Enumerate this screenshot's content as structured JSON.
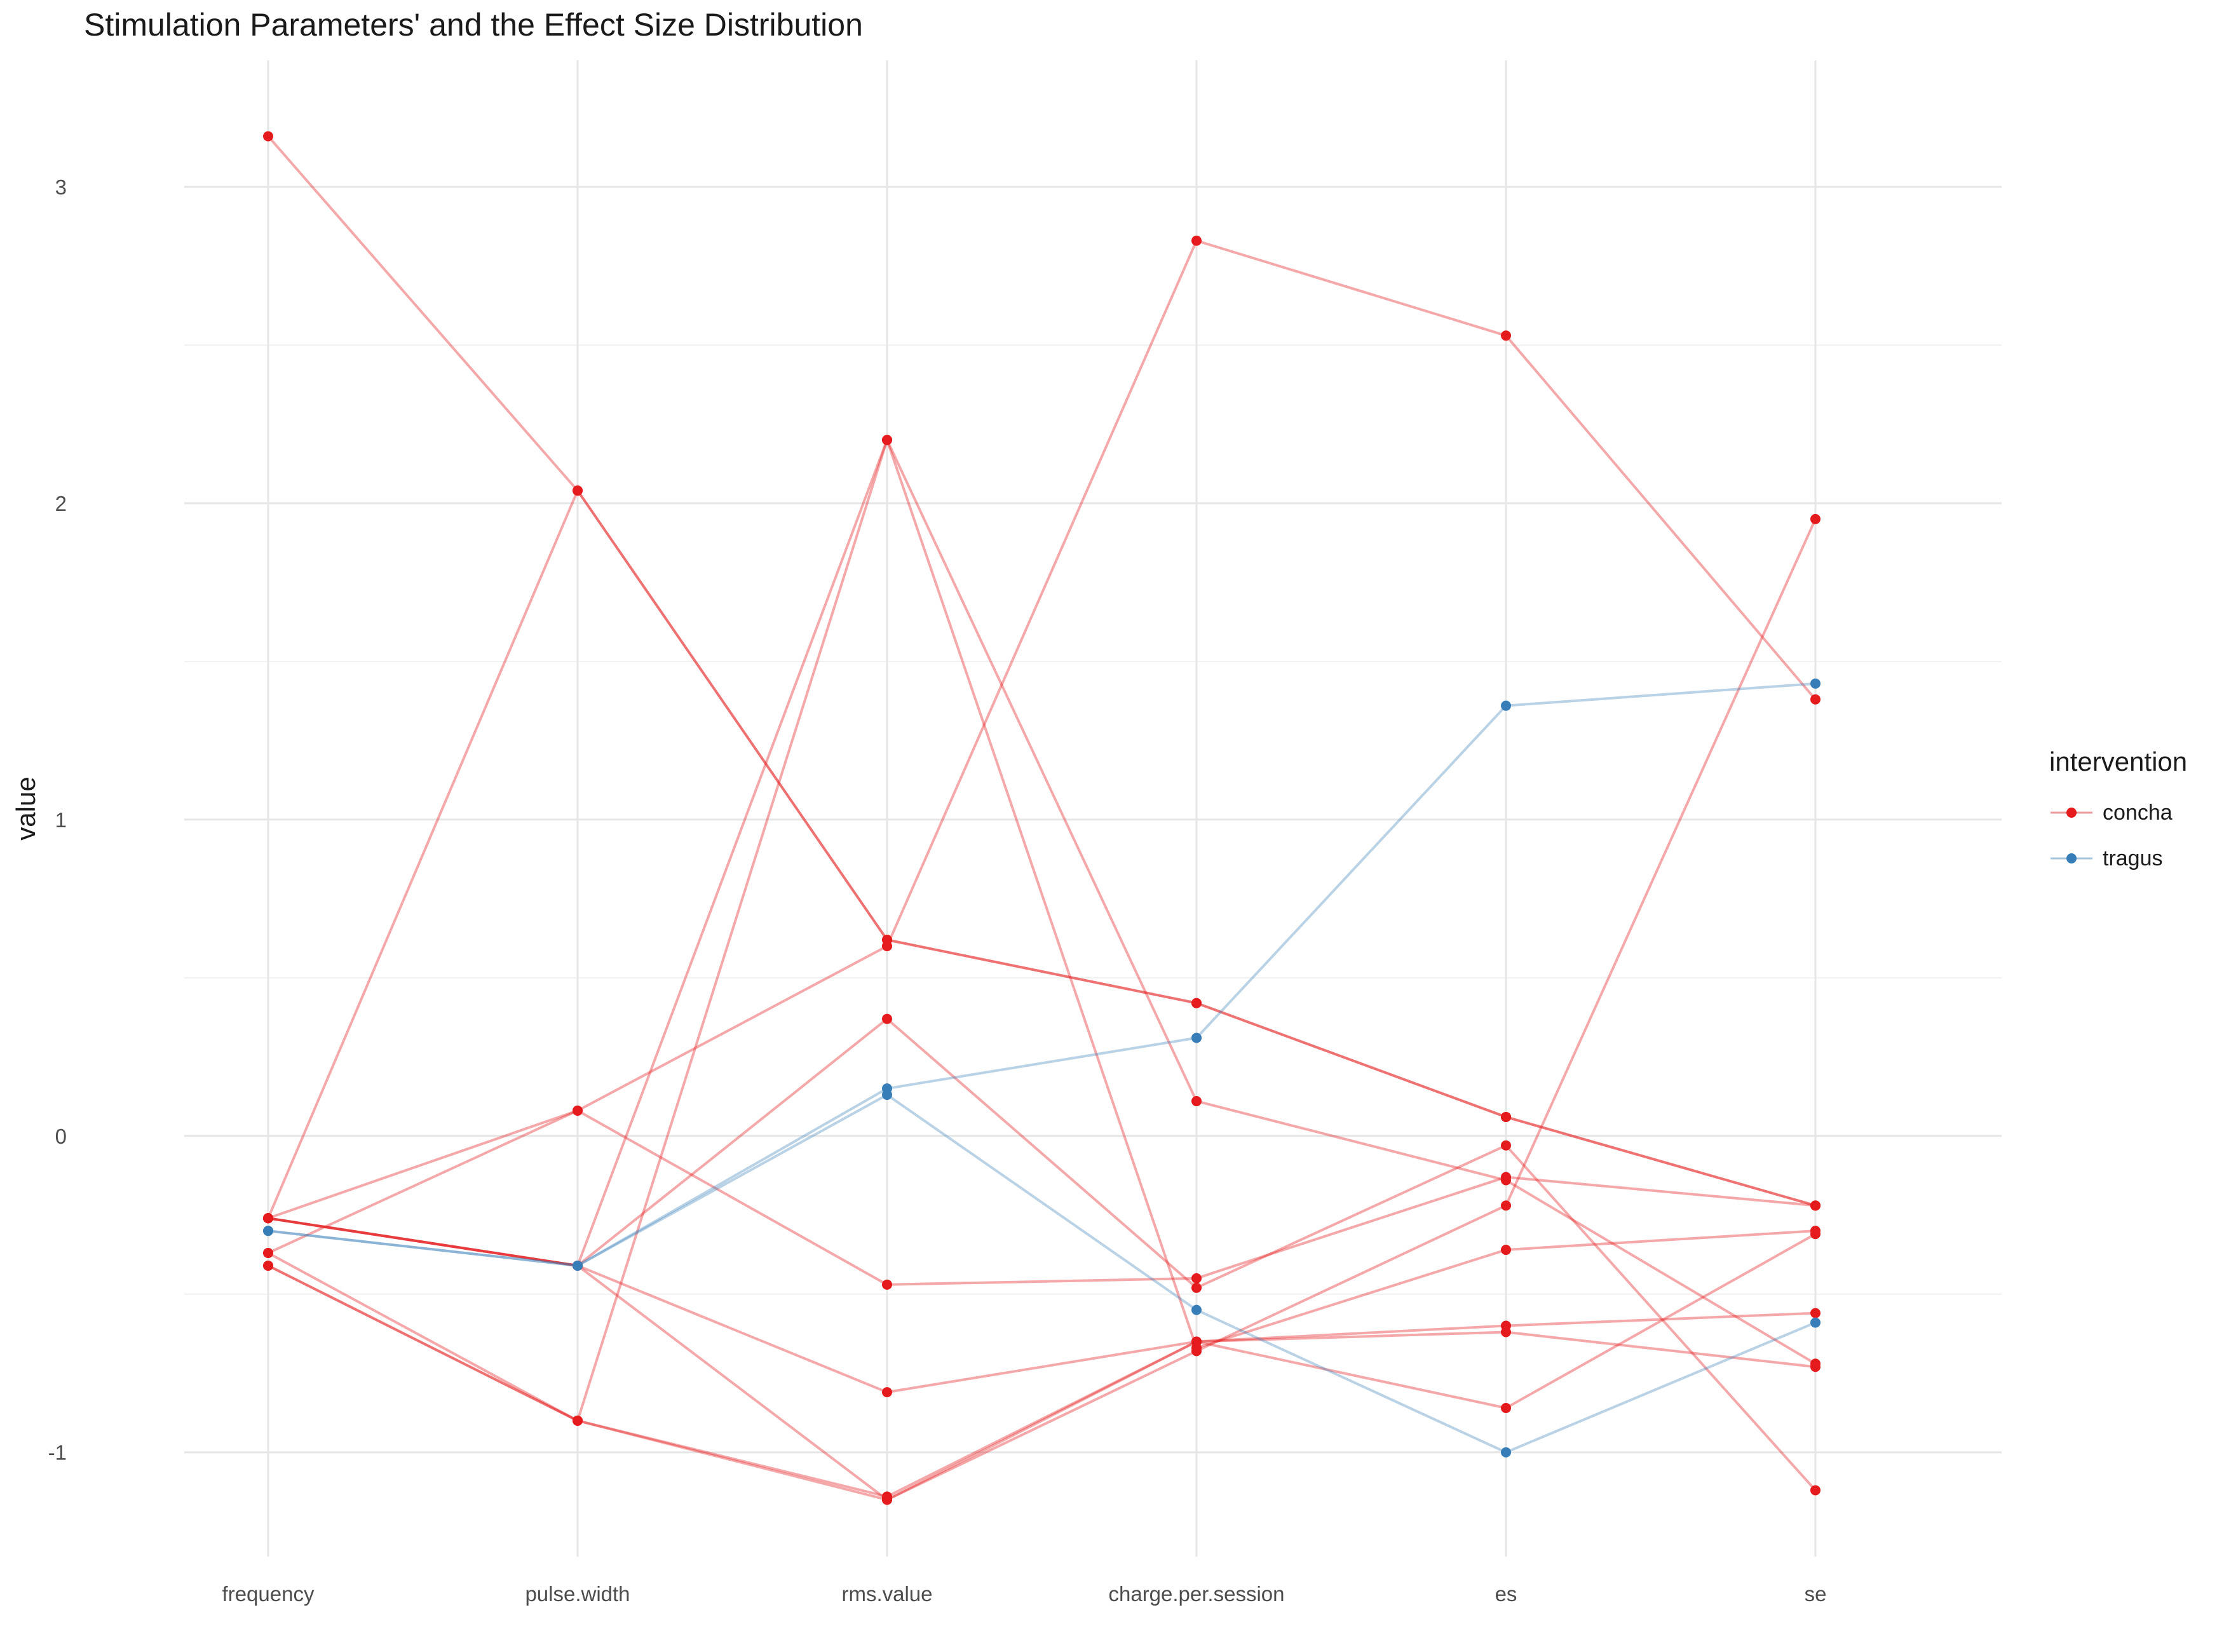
{
  "chart_data": {
    "type": "line",
    "title": "Stimulation Parameters' and the Effect Size Distribution",
    "xlabel": "",
    "ylabel": "value",
    "categories": [
      "frequency",
      "pulse.width",
      "rms.value",
      "charge.per.session",
      "es",
      "se"
    ],
    "ylim": [
      -1.33,
      3.4
    ],
    "yticks": [
      -1,
      0,
      1,
      2,
      3
    ],
    "grid": true,
    "legend": {
      "title": "intervention",
      "position": "right",
      "entries": [
        {
          "label": "concha",
          "color": "#e41a1c"
        },
        {
          "label": "tragus",
          "color": "#377eb8"
        }
      ]
    },
    "series": [
      {
        "group": "concha",
        "values": [
          3.16,
          2.04,
          0.62,
          0.42,
          0.06,
          -0.22
        ]
      },
      {
        "group": "concha",
        "values": [
          -0.26,
          2.04,
          0.62,
          0.42,
          0.06,
          -0.22
        ]
      },
      {
        "group": "concha",
        "values": [
          -0.37,
          0.08,
          0.6,
          2.83,
          2.53,
          1.38
        ]
      },
      {
        "group": "concha",
        "values": [
          -0.26,
          0.08,
          -0.47,
          -0.45,
          -0.13,
          -0.22
        ]
      },
      {
        "group": "concha",
        "values": [
          -0.41,
          -0.9,
          2.2,
          0.11,
          -0.14,
          -0.72
        ]
      },
      {
        "group": "concha",
        "values": [
          -0.26,
          -0.41,
          0.37,
          -0.48,
          -0.03,
          -1.12
        ]
      },
      {
        "group": "concha",
        "values": [
          -0.26,
          -0.41,
          -0.81,
          -0.65,
          -0.6,
          -0.56
        ]
      },
      {
        "group": "concha",
        "values": [
          -0.26,
          -0.41,
          -1.15,
          -0.68,
          -0.22,
          1.95
        ]
      },
      {
        "group": "concha",
        "values": [
          -0.37,
          -0.9,
          -1.14,
          -0.65,
          -0.62,
          -0.73
        ]
      },
      {
        "group": "concha",
        "values": [
          -0.26,
          -0.41,
          2.2,
          -0.67,
          -0.36,
          -0.3
        ]
      },
      {
        "group": "concha",
        "values": [
          -0.41,
          -0.9,
          -1.15,
          -0.65,
          -0.86,
          -0.31
        ]
      },
      {
        "group": "tragus",
        "values": [
          -0.3,
          -0.41,
          0.15,
          0.31,
          1.36,
          1.43
        ]
      },
      {
        "group": "tragus",
        "values": [
          -0.3,
          -0.41,
          0.13,
          -0.55,
          -1.0,
          -0.59
        ]
      }
    ]
  }
}
